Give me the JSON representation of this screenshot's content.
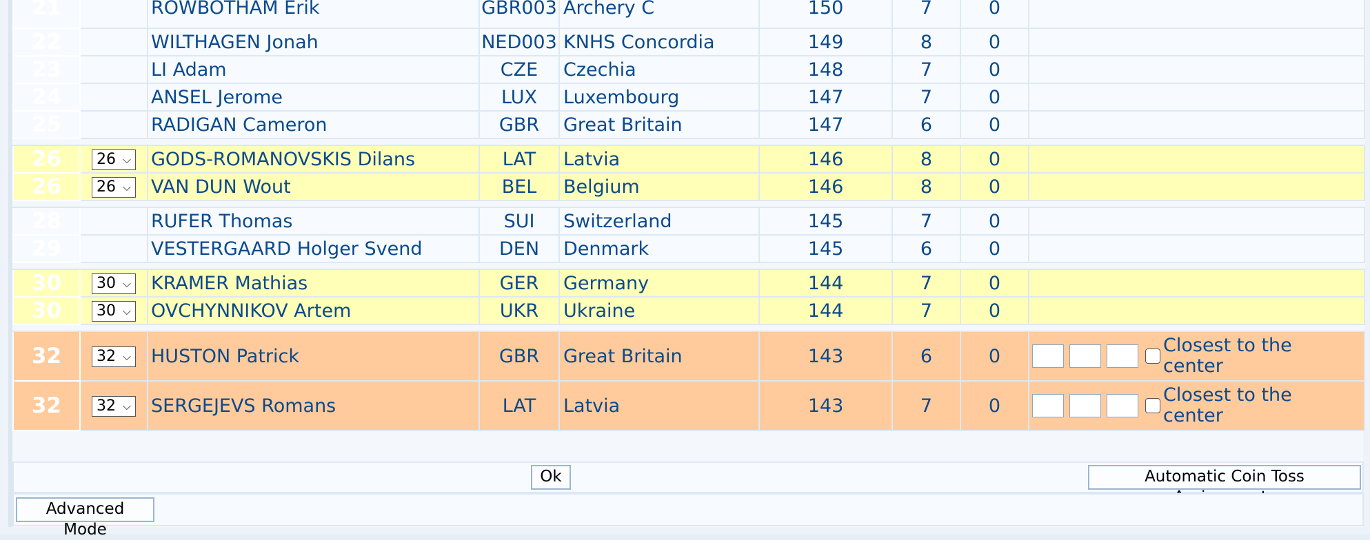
{
  "rows": [
    {
      "kind": "plain",
      "rank": "21",
      "select": "",
      "name": "ROWBOTHAM Erik",
      "code": "GBR003",
      "country": "Archery C",
      "score": "150",
      "golds": "7",
      "tens": "0"
    },
    {
      "kind": "plain",
      "rank": "22",
      "select": "",
      "name": "WILTHAGEN Jonah",
      "code": "NED003",
      "country": "KNHS Concordia",
      "score": "149",
      "golds": "8",
      "tens": "0"
    },
    {
      "kind": "plain",
      "rank": "23",
      "select": "",
      "name": "LI Adam",
      "code": "CZE",
      "country": "Czechia",
      "score": "148",
      "golds": "7",
      "tens": "0"
    },
    {
      "kind": "plain",
      "rank": "24",
      "select": "",
      "name": "ANSEL Jerome",
      "code": "LUX",
      "country": "Luxembourg",
      "score": "147",
      "golds": "7",
      "tens": "0"
    },
    {
      "kind": "plain",
      "rank": "25",
      "select": "",
      "name": "RADIGAN Cameron",
      "code": "GBR",
      "country": "Great Britain",
      "score": "147",
      "golds": "6",
      "tens": "0"
    },
    {
      "kind": "spacer"
    },
    {
      "kind": "yellow",
      "rank": "26",
      "select": "26",
      "name": "GODS-ROMANOVSKIS Dilans",
      "code": "LAT",
      "country": "Latvia",
      "score": "146",
      "golds": "8",
      "tens": "0"
    },
    {
      "kind": "yellow",
      "rank": "26",
      "select": "26",
      "name": "VAN DUN Wout",
      "code": "BEL",
      "country": "Belgium",
      "score": "146",
      "golds": "8",
      "tens": "0"
    },
    {
      "kind": "spacer"
    },
    {
      "kind": "plain",
      "rank": "28",
      "select": "",
      "name": "RUFER Thomas",
      "code": "SUI",
      "country": "Switzerland",
      "score": "145",
      "golds": "7",
      "tens": "0"
    },
    {
      "kind": "plain",
      "rank": "29",
      "select": "",
      "name": "VESTERGAARD Holger Svend",
      "code": "DEN",
      "country": "Denmark",
      "score": "145",
      "golds": "6",
      "tens": "0"
    },
    {
      "kind": "spacer"
    },
    {
      "kind": "yellow",
      "rank": "30",
      "select": "30",
      "name": "KRAMER Mathias",
      "code": "GER",
      "country": "Germany",
      "score": "144",
      "golds": "7",
      "tens": "0"
    },
    {
      "kind": "yellow",
      "rank": "30",
      "select": "30",
      "name": "OVCHYNNIKOV Artem",
      "code": "UKR",
      "country": "Ukraine",
      "score": "144",
      "golds": "7",
      "tens": "0"
    },
    {
      "kind": "spacer"
    },
    {
      "kind": "orange",
      "rank": "32",
      "select": "32",
      "name": "HUSTON Patrick",
      "code": "GBR",
      "country": "Great Britain",
      "score": "143",
      "golds": "6",
      "tens": "0",
      "closest": "Closest to the center"
    },
    {
      "kind": "orange",
      "rank": "32",
      "select": "32",
      "name": "SERGEJEVS Romans",
      "code": "LAT",
      "country": "Latvia",
      "score": "143",
      "golds": "7",
      "tens": "0",
      "closest": "Closest to the center"
    }
  ],
  "buttons": {
    "ok": "Ok",
    "coin_toss": "Automatic Coin Toss  Assignments",
    "advanced": "Advanced Mode"
  },
  "colors": {
    "rank_bg": "#0d4d8e",
    "tie_yellow": "#ffffb8",
    "shootoff_orange": "#ffcb9c",
    "text_blue": "#0b4a8c"
  }
}
